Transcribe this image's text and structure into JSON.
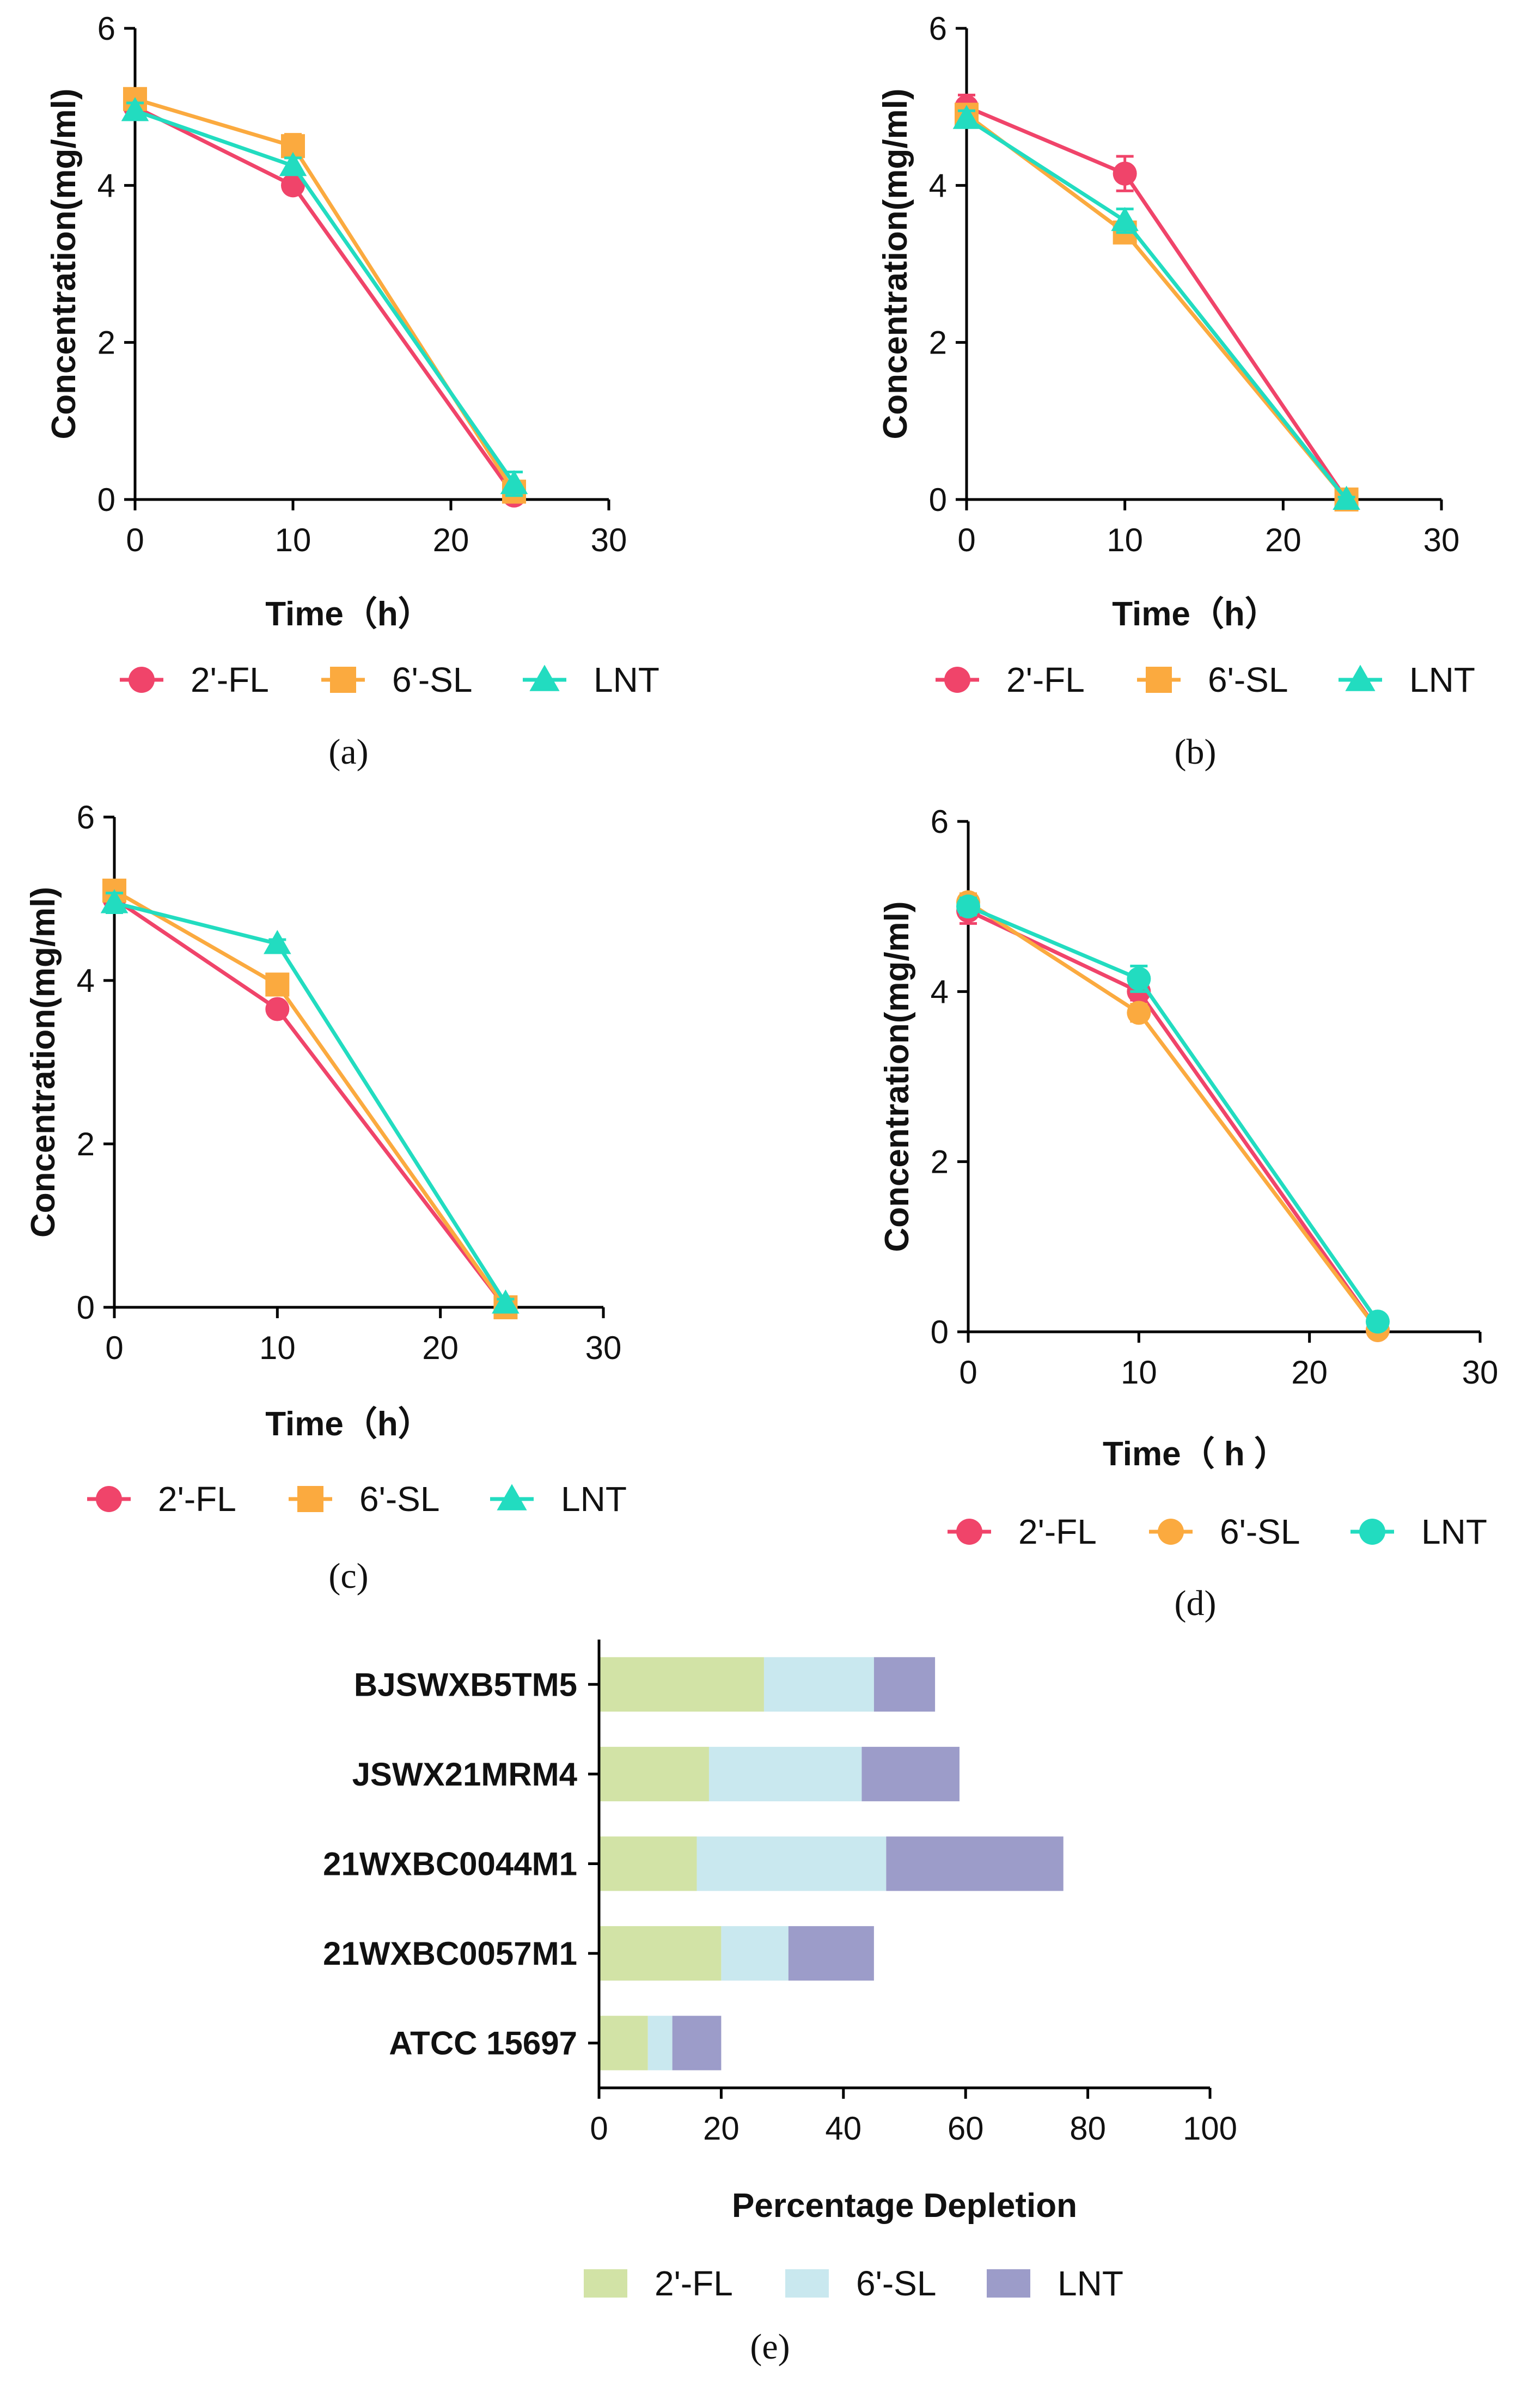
{
  "colors": {
    "fl": "#f0446a",
    "sl": "#fbaa3f",
    "lnt": "#22dcc0",
    "bar_fl": "#d2e3a6",
    "bar_sl": "#c9e8ef",
    "bar_lnt": "#9c9cc9",
    "axis": "#000000"
  },
  "chart_data": [
    {
      "type": "line",
      "panel_label": "(a)",
      "xlabel": "Time（h）",
      "ylabel": "Concentration(mg/ml)",
      "xlim": [
        0,
        30
      ],
      "ylim": [
        0,
        6
      ],
      "xticks": [
        "0",
        "10",
        "20",
        "30"
      ],
      "yticks": [
        "0",
        "2",
        "4",
        "6"
      ],
      "x": [
        0,
        10,
        24
      ],
      "legend_position": "bottom",
      "series": [
        {
          "name": "2'-FL",
          "marker": "circle",
          "values": [
            5.0,
            4.0,
            0.05
          ],
          "errors": [
            0.05,
            0.05,
            0.05
          ]
        },
        {
          "name": "6'-SL",
          "marker": "square",
          "values": [
            5.1,
            4.5,
            0.1
          ],
          "errors": [
            0.1,
            0.15,
            0.05
          ]
        },
        {
          "name": "LNT",
          "marker": "triangle",
          "values": [
            4.95,
            4.25,
            0.2
          ],
          "errors": [
            0.1,
            0.1,
            0.15
          ]
        }
      ]
    },
    {
      "type": "line",
      "panel_label": "(b)",
      "xlabel": "Time（h）",
      "ylabel": "Concentration(mg/ml)",
      "xlim": [
        0,
        30
      ],
      "ylim": [
        0,
        6
      ],
      "xticks": [
        "0",
        "10",
        "20",
        "30"
      ],
      "yticks": [
        "0",
        "2",
        "4",
        "6"
      ],
      "x": [
        0,
        10,
        24
      ],
      "legend_position": "bottom",
      "series": [
        {
          "name": "2'-FL",
          "marker": "circle",
          "values": [
            5.0,
            4.15,
            0.0
          ],
          "errors": [
            0.15,
            0.22,
            0.03
          ]
        },
        {
          "name": "6'-SL",
          "marker": "square",
          "values": [
            4.9,
            3.4,
            0.0
          ],
          "errors": [
            0.1,
            0.1,
            0.03
          ]
        },
        {
          "name": "LNT",
          "marker": "triangle",
          "values": [
            4.85,
            3.55,
            0.0
          ],
          "errors": [
            0.1,
            0.15,
            0.03
          ]
        }
      ]
    },
    {
      "type": "line",
      "panel_label": "(c)",
      "xlabel": "Time（h）",
      "ylabel": "Concentration(mg/ml)",
      "xlim": [
        0,
        30
      ],
      "ylim": [
        0,
        6
      ],
      "xticks": [
        "0",
        "10",
        "20",
        "30"
      ],
      "yticks": [
        "0",
        "2",
        "4",
        "6"
      ],
      "x": [
        0,
        10,
        24
      ],
      "legend_position": "bottom",
      "series": [
        {
          "name": "2'-FL",
          "marker": "circle",
          "values": [
            5.0,
            3.65,
            0.0
          ],
          "errors": [
            0.1,
            0.08,
            0.03
          ]
        },
        {
          "name": "6'-SL",
          "marker": "square",
          "values": [
            5.1,
            3.95,
            0.0
          ],
          "errors": [
            0.1,
            0.08,
            0.03
          ]
        },
        {
          "name": "LNT",
          "marker": "triangle",
          "values": [
            4.95,
            4.45,
            0.05
          ],
          "errors": [
            0.12,
            0.05,
            0.05
          ]
        }
      ]
    },
    {
      "type": "line",
      "panel_label": "(d)",
      "xlabel": "Time（  h  ）",
      "ylabel": "Concentration(mg/ml)",
      "xlim": [
        0,
        30
      ],
      "ylim": [
        0,
        6
      ],
      "xticks": [
        "0",
        "10",
        "20",
        "30"
      ],
      "yticks": [
        "0",
        "2",
        "4",
        "6"
      ],
      "x": [
        0,
        10,
        24
      ],
      "legend_position": "bottom",
      "series": [
        {
          "name": "2'-FL",
          "marker": "circle",
          "values": [
            4.95,
            4.0,
            0.02
          ],
          "errors": [
            0.15,
            0.1,
            0.03
          ]
        },
        {
          "name": "6'-SL",
          "marker": "circle",
          "values": [
            5.05,
            3.75,
            0.02
          ],
          "errors": [
            0.1,
            0.1,
            0.03
          ]
        },
        {
          "name": "LNT",
          "marker": "circle",
          "values": [
            5.0,
            4.15,
            0.12
          ],
          "errors": [
            0.1,
            0.15,
            0.05
          ]
        }
      ]
    },
    {
      "type": "bar",
      "orientation": "horizontal",
      "stacked": true,
      "panel_label": "(e)",
      "xlabel": "Percentage Depletion",
      "ylabel": "",
      "xlim": [
        0,
        100
      ],
      "xticks": [
        "0",
        "20",
        "40",
        "60",
        "80",
        "100"
      ],
      "categories": [
        "BJSWXB5TM5",
        "JSWX21MRM4",
        "21WXBC0044M1",
        "21WXBC0057M1",
        "ATCC 15697"
      ],
      "legend_position": "bottom",
      "series": [
        {
          "name": "2'-FL",
          "values": [
            27,
            18,
            16,
            20,
            8
          ]
        },
        {
          "name": "6'-SL",
          "values": [
            18,
            25,
            31,
            11,
            4
          ]
        },
        {
          "name": "LNT",
          "values": [
            10,
            16,
            29,
            14,
            8
          ]
        }
      ]
    }
  ]
}
